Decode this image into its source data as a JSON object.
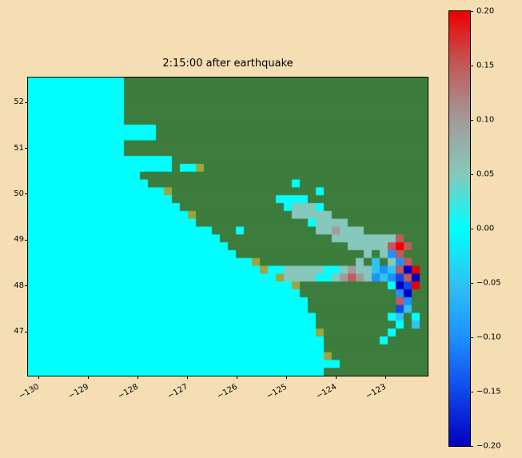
{
  "title": "2:15:00 after earthquake",
  "colors": {
    "background": "#F5DEB3",
    "frame": "#000000",
    "axis_text": "#000000"
  },
  "chart_data": {
    "type": "heatmap",
    "title": "2:15:00 after earthquake",
    "x_ticks": [
      -130,
      -129,
      -128,
      -127,
      -126,
      -125,
      -124,
      -123
    ],
    "x_tick_labels": [
      "−130",
      "−129",
      "−128",
      "−127",
      "−126",
      "−125",
      "−124",
      "−123"
    ],
    "y_ticks": [
      52,
      51,
      50,
      49,
      48,
      47
    ],
    "y_tick_labels": [
      "52",
      "51",
      "50",
      "49",
      "48",
      "47"
    ],
    "xlim": [
      -130.21,
      -122.15
    ],
    "ylim": [
      46.05,
      52.54
    ],
    "grid_on": false,
    "land_color": "#3C7C3C",
    "shore_color": "#9DA53F",
    "colorbar": {
      "vmin": -0.2,
      "vmax": 0.2,
      "ticks": [
        0.2,
        0.15,
        0.1,
        0.05,
        0,
        -0.05,
        -0.1,
        -0.15,
        -0.2
      ],
      "tick_labels": [
        "0.20",
        "0.15",
        "0.10",
        "0.05",
        "0.00",
        "−0.05",
        "−0.10",
        "−0.15",
        "−0.20"
      ],
      "anchors": [
        {
          "v": -0.2,
          "c": "#0000BE"
        },
        {
          "v": -0.15,
          "c": "#0F47E8"
        },
        {
          "v": -0.1,
          "c": "#1E90FF"
        },
        {
          "v": -0.05,
          "c": "#2FC3F2"
        },
        {
          "v": 0,
          "c": "#00FFFF"
        },
        {
          "v": 0.05,
          "c": "#86C8BC"
        },
        {
          "v": 0.1,
          "c": "#A39B9B"
        },
        {
          "v": 0.15,
          "c": "#C05A5A"
        },
        {
          "v": 0.2,
          "c": "#EE0000"
        }
      ]
    },
    "cells": {
      "cols": 50,
      "rows": 38,
      "land_char": "g",
      "shore_char": "y",
      "legend": {
        ".": 0,
        "a": 0.05,
        "b": 0.1,
        "c": 0.15,
        "d": 0.2,
        "e": -0.05,
        "f": -0.1,
        "h": -0.15,
        "i": -0.2
      },
      "rows_rle": [
        ".12 g38",
        ".12 g38",
        ".12 g38",
        ".12 g38",
        ".12 g38",
        ".12 g38",
        ".16 g34",
        ".16 g34",
        ".12 g38",
        ".12 g38",
        ".18 g32",
        ".18 g1 .2 y1 g28",
        ".14 g36",
        ".15 g18 .1 g16",
        ".17 y1 g18 .1 g13",
        ".18 g13 .4 g15",
        ".19 g13 .1 a3 .1 g13",
        ".20 y1 g12 a5 g12",
        ".21 g14 .1 a4 g10",
        ".23 g3 .1 g9 a2 b1 a3 g8",
        ".24 g14 a8 c1 g3",
        ".25 g15 a5 c1 d1 c1 g2",
        ".26 g16 a1 g1 a1 f1 c1 g3",
        ".28 y1 g12 a1 g1 e1 g1 a1 f1 c1 g2",
        ".29 y1 .2 a5 .2 a1 b1 a2 e1 f1 e1 c1 i1 d1 g1",
        ".31 y1 a4 .2 a1 b1 c1 b1 a1 f1 e1 f1 h1 c1 i1 g1",
        ".33 y1 g11 .1 i1 h1 d1 g1",
        ".34 g12 f1 i1 g2",
        ".35 g11 c1 f1 g2",
        ".35 g11 h1 e1 g2",
        ".36 g9 .1 e1 g1 .1 g1",
        ".36 g10 .1 g1 e1 g1",
        ".36 y1 g8 .1 g4",
        ".37 g7 .1 g5",
        ".37 g13",
        ".37 y1 g12",
        ".39 g11",
        ".37 g13"
      ]
    }
  }
}
